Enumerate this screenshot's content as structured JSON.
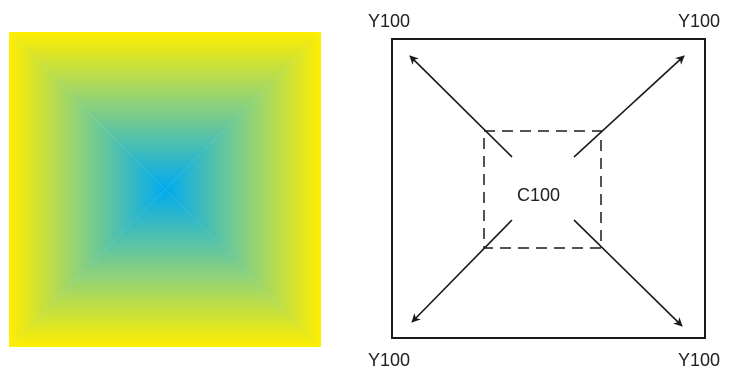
{
  "colors": {
    "outer": "#ffee00",
    "center": "#00aaf0",
    "stroke": "#1a1a1a"
  },
  "gradient": {
    "type": "square",
    "outer_color_label": "Y100",
    "center_color_label": "C100"
  },
  "diagram": {
    "corner_labels": {
      "top_left": "Y100",
      "top_right": "Y100",
      "bottom_left": "Y100",
      "bottom_right": "Y100"
    },
    "center_label": "C100"
  }
}
